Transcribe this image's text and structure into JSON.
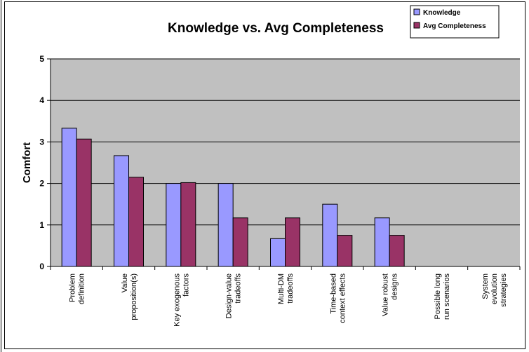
{
  "chart_data": {
    "type": "bar",
    "title": "Knowledge vs. Avg Completeness",
    "xlabel": "",
    "ylabel": "Comfort",
    "ylim": [
      0,
      5
    ],
    "yticks": [
      "0",
      "1",
      "2",
      "3",
      "4",
      "5"
    ],
    "categories": [
      "Problem definition",
      "Value proposition(s)",
      "Key exogenous factors",
      "Design-value tradeoffs",
      "Multi-DM tradeoffs",
      "Time-based context effects",
      "Value robust designs",
      "Possible long run scenarios",
      "System evolution strategies"
    ],
    "category_lines": [
      [
        "Problem",
        "definition"
      ],
      [
        "Value",
        "proposition(s)"
      ],
      [
        "Key exogenous",
        "factors"
      ],
      [
        "Design-value",
        "tradeoffs"
      ],
      [
        "Multi-DM",
        "tradeoffs"
      ],
      [
        "Time-based",
        "context effects"
      ],
      [
        "Value robust",
        "designs"
      ],
      [
        "Possible long",
        "run scenarios"
      ],
      [
        "System",
        "evolution",
        "strategies"
      ]
    ],
    "series": [
      {
        "name": "Knowledge",
        "values": [
          3.33,
          2.67,
          2.0,
          2.0,
          0.67,
          1.5,
          1.17,
          0,
          0
        ]
      },
      {
        "name": "Avg Completeness",
        "values": [
          3.07,
          2.15,
          2.02,
          1.17,
          1.17,
          0.75,
          0.75,
          0,
          0
        ]
      }
    ],
    "colors": {
      "Knowledge": "#9999ff",
      "Avg Completeness": "#993366",
      "plot_background": "#c0c0c0",
      "gridline": "#000000"
    },
    "grid": true,
    "legend": "top-right"
  }
}
